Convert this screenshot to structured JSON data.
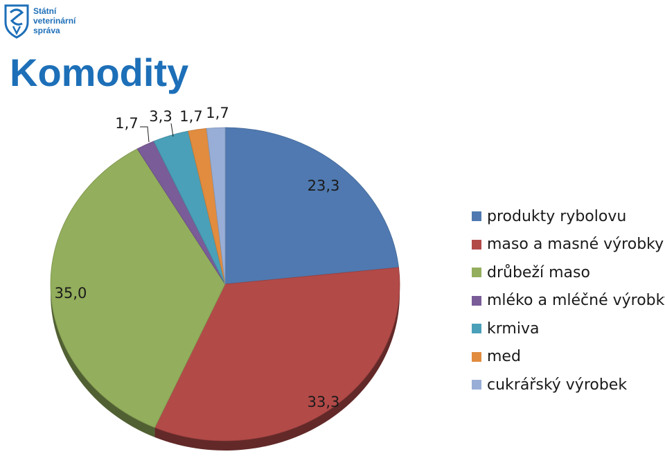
{
  "logo": {
    "line1": "Státní",
    "line2": "veterinární",
    "line3": "správa"
  },
  "title": "Komodity",
  "chart_data": {
    "type": "pie",
    "title": "Komodity",
    "start_angle_deg": 0,
    "direction": "clockwise",
    "style": "3d-tilted",
    "legend_position": "right",
    "slices": [
      {
        "label": "produkty rybolovu",
        "value": 23.3,
        "value_label": "23,3",
        "color": "#4f79b0"
      },
      {
        "label": "maso a masné výrobky",
        "value": 33.3,
        "value_label": "33,3",
        "color": "#b24a48"
      },
      {
        "label": "drůbeží maso",
        "value": 35.0,
        "value_label": "35,0",
        "color": "#93ae5c"
      },
      {
        "label": "mléko a mléčné výrobky",
        "value": 1.7,
        "value_label": "1,7",
        "color": "#7a5c98"
      },
      {
        "label": "krmiva",
        "value": 3.3,
        "value_label": "3,3",
        "color": "#4aa0b8"
      },
      {
        "label": "med",
        "value": 1.7,
        "value_label": "1,7",
        "color": "#e18c3f"
      },
      {
        "label": "cukrářský výrobek",
        "value": 1.7,
        "value_label": "1,7",
        "color": "#98aed6"
      }
    ]
  }
}
